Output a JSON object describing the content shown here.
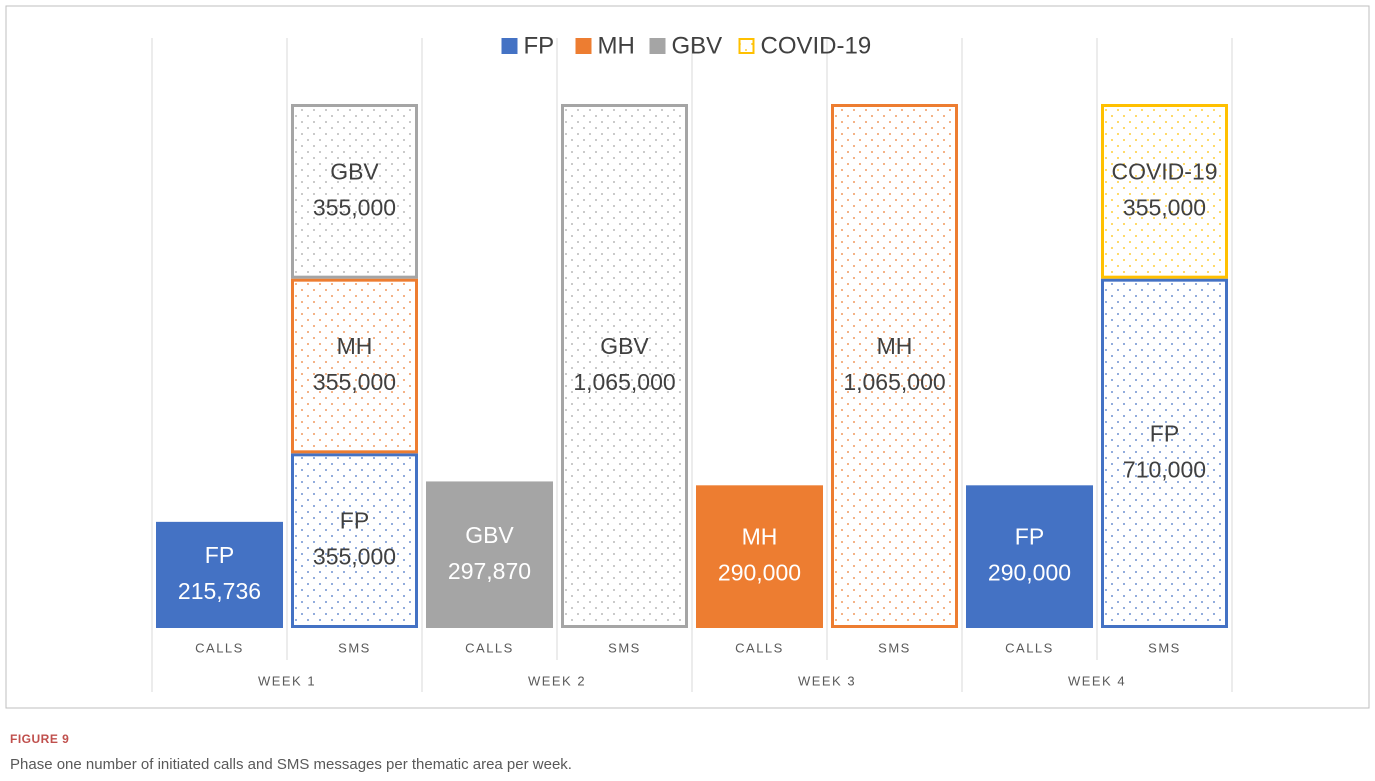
{
  "chart_data": {
    "type": "stacked_bar",
    "categories": [
      "CALLS",
      "SMS",
      "CALLS",
      "SMS",
      "CALLS",
      "SMS",
      "CALLS",
      "SMS"
    ],
    "groups": [
      "WEEK 1",
      "WEEK 2",
      "WEEK 3",
      "WEEK 4"
    ],
    "series": [
      {
        "name": "FP",
        "color": "#4472c4",
        "values": [
          215736,
          355000,
          null,
          null,
          null,
          null,
          290000,
          710000
        ],
        "value_labels": [
          "215,736",
          "355,000",
          null,
          null,
          null,
          null,
          "290,000",
          "710,000"
        ]
      },
      {
        "name": "MH",
        "color": "#ed7d31",
        "values": [
          null,
          355000,
          null,
          null,
          290000,
          1065000,
          null,
          null
        ],
        "value_labels": [
          null,
          "355,000",
          null,
          null,
          "290,000",
          "1,065,000",
          null,
          null
        ]
      },
      {
        "name": "GBV",
        "color": "#a5a5a5",
        "values": [
          null,
          355000,
          297870,
          1065000,
          null,
          null,
          null,
          null
        ],
        "value_labels": [
          null,
          "355,000",
          "297,870",
          "1,065,000",
          null,
          null,
          null,
          null
        ]
      },
      {
        "name": "COVID-19",
        "color": "#ffc000",
        "values": [
          null,
          null,
          null,
          null,
          null,
          null,
          null,
          355000
        ],
        "value_labels": [
          null,
          null,
          null,
          null,
          null,
          null,
          null,
          "355,000"
        ]
      }
    ],
    "legend": "top",
    "figure_label": "FIGURE 9",
    "caption": "Phase one number of initiated calls and SMS messages per thematic area per week."
  }
}
